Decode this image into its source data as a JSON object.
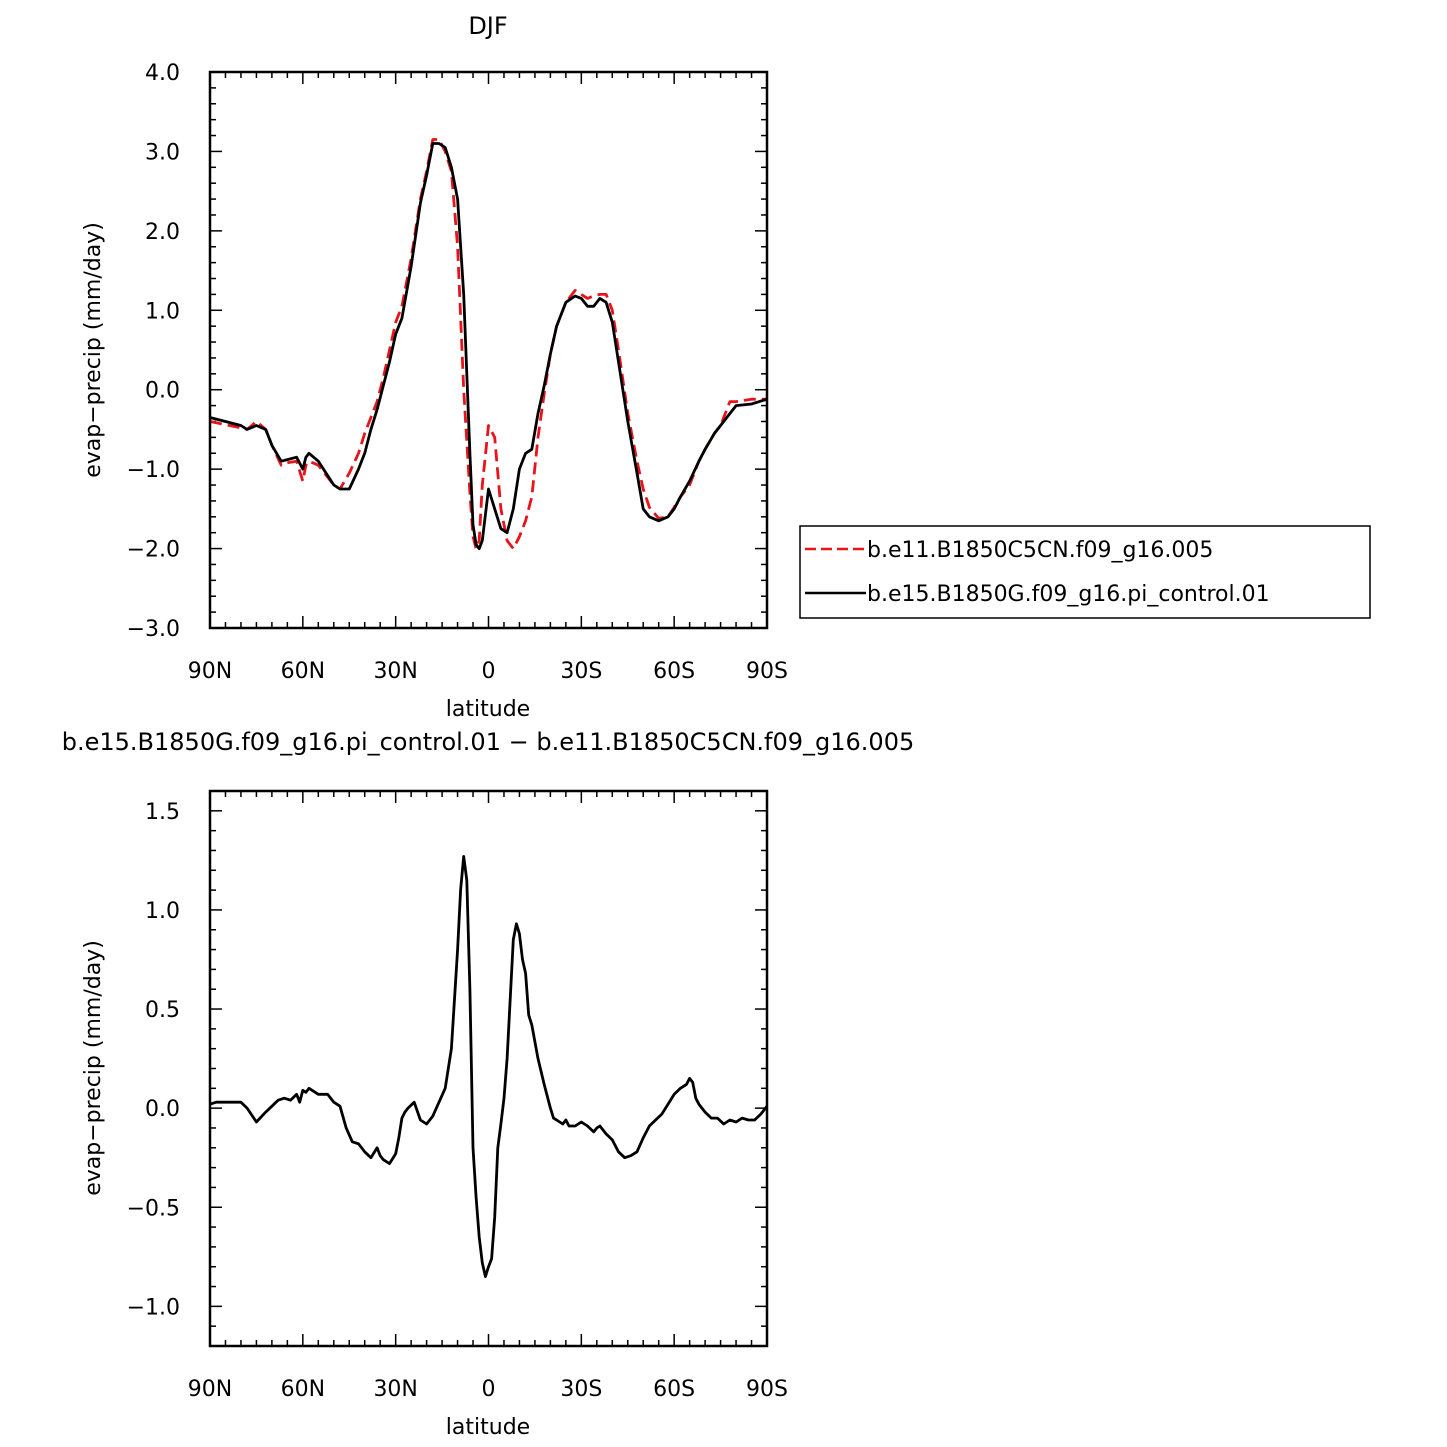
{
  "chart_data": [
    {
      "type": "line",
      "title": "DJF",
      "xlabel": "latitude",
      "ylabel": "evap−precip (mm/day)",
      "x_tick_labels": [
        "90N",
        "60N",
        "30N",
        "0",
        "30S",
        "60S",
        "90S"
      ],
      "x_tick_values": [
        90,
        60,
        30,
        0,
        -30,
        -60,
        -90
      ],
      "xlim": [
        90,
        -90
      ],
      "y_tick_labels": [
        "4.0",
        "3.0",
        "2.0",
        "1.0",
        "0.0",
        "−1.0",
        "−2.0",
        "−3.0"
      ],
      "y_tick_values": [
        4,
        3,
        2,
        1,
        0,
        -1,
        -2,
        -3
      ],
      "ylim": [
        -3,
        4
      ],
      "grid": false,
      "legend_position": "right",
      "series": [
        {
          "name": "b.e11.B1850C5CN.f09_g16.005",
          "color": "#e8141c",
          "style": "dashed",
          "x": [
            90,
            85,
            80,
            78,
            75,
            72,
            70,
            67,
            65,
            62,
            60,
            59,
            58,
            55,
            50,
            48,
            45,
            42,
            40,
            38,
            36,
            34,
            32,
            30,
            28,
            25,
            22,
            20,
            18,
            16,
            14,
            12,
            10,
            8,
            6,
            5,
            4,
            3,
            2,
            0,
            -2,
            -4,
            -6,
            -8,
            -10,
            -12,
            -14,
            -16,
            -18,
            -20,
            -22,
            -25,
            -28,
            -30,
            -32,
            -34,
            -36,
            -38,
            -40,
            -42,
            -45,
            -48,
            -50,
            -52,
            -55,
            -58,
            -60,
            -62,
            -65,
            -68,
            -70,
            -73,
            -75,
            -78,
            -80,
            -85,
            -90
          ],
          "y": [
            -0.4,
            -0.44,
            -0.48,
            -0.5,
            -0.4,
            -0.5,
            -0.7,
            -0.95,
            -0.92,
            -0.9,
            -1.15,
            -0.95,
            -0.9,
            -0.95,
            -1.2,
            -1.25,
            -1.05,
            -0.8,
            -0.55,
            -0.35,
            -0.15,
            0.15,
            0.5,
            0.85,
            1.05,
            1.65,
            2.4,
            2.75,
            3.15,
            3.15,
            3.0,
            2.75,
            1.8,
            0.0,
            -1.3,
            -1.85,
            -2.0,
            -1.9,
            -1.2,
            -0.45,
            -0.6,
            -1.5,
            -1.9,
            -2.0,
            -1.85,
            -1.65,
            -1.35,
            -0.6,
            -0.05,
            0.45,
            0.8,
            1.1,
            1.25,
            1.2,
            1.15,
            1.18,
            1.2,
            1.2,
            1.0,
            0.5,
            -0.3,
            -0.9,
            -1.25,
            -1.48,
            -1.62,
            -1.6,
            -1.48,
            -1.35,
            -1.2,
            -0.9,
            -0.75,
            -0.55,
            -0.45,
            -0.15,
            -0.15,
            -0.12,
            -0.12
          ]
        },
        {
          "name": "b.e15.B1850G.f09_g16.pi_control.01",
          "color": "#000000",
          "style": "solid",
          "x": [
            90,
            85,
            80,
            78,
            75,
            72,
            70,
            67,
            65,
            62,
            60,
            59,
            58,
            55,
            50,
            48,
            45,
            42,
            40,
            38,
            36,
            34,
            32,
            30,
            28,
            25,
            22,
            20,
            18,
            16,
            14,
            12,
            10,
            8,
            6,
            5,
            4,
            3,
            2,
            0,
            -2,
            -4,
            -6,
            -8,
            -10,
            -12,
            -14,
            -16,
            -18,
            -20,
            -22,
            -25,
            -28,
            -30,
            -32,
            -34,
            -36,
            -38,
            -40,
            -42,
            -45,
            -48,
            -50,
            -52,
            -55,
            -58,
            -60,
            -62,
            -65,
            -68,
            -70,
            -73,
            -75,
            -78,
            -80,
            -85,
            -90
          ],
          "y": [
            -0.35,
            -0.4,
            -0.45,
            -0.5,
            -0.45,
            -0.5,
            -0.7,
            -0.9,
            -0.88,
            -0.85,
            -1.0,
            -0.85,
            -0.8,
            -0.9,
            -1.2,
            -1.25,
            -1.25,
            -1.0,
            -0.8,
            -0.5,
            -0.25,
            0.05,
            0.35,
            0.7,
            0.9,
            1.55,
            2.35,
            2.7,
            3.1,
            3.1,
            3.05,
            2.8,
            2.4,
            1.2,
            -0.8,
            -1.7,
            -1.95,
            -2.0,
            -1.9,
            -1.25,
            -1.5,
            -1.75,
            -1.8,
            -1.5,
            -1.0,
            -0.8,
            -0.75,
            -0.3,
            0.05,
            0.45,
            0.8,
            1.1,
            1.18,
            1.15,
            1.05,
            1.05,
            1.15,
            1.1,
            0.85,
            0.35,
            -0.4,
            -1.05,
            -1.5,
            -1.6,
            -1.65,
            -1.6,
            -1.5,
            -1.35,
            -1.15,
            -0.9,
            -0.75,
            -0.55,
            -0.45,
            -0.3,
            -0.2,
            -0.18,
            -0.12
          ]
        }
      ]
    },
    {
      "type": "line",
      "title": "b.e15.B1850G.f09_g16.pi_control.01 − b.e11.B1850C5CN.f09_g16.005",
      "xlabel": "latitude",
      "ylabel": "evap−precip (mm/day)",
      "x_tick_labels": [
        "90N",
        "60N",
        "30N",
        "0",
        "30S",
        "60S",
        "90S"
      ],
      "x_tick_values": [
        90,
        60,
        30,
        0,
        -30,
        -60,
        -90
      ],
      "xlim": [
        90,
        -90
      ],
      "y_tick_labels": [
        "1.5",
        "1.0",
        "0.5",
        "0.0",
        "−0.5",
        "−1.0"
      ],
      "y_tick_values": [
        1.5,
        1.0,
        0.5,
        0.0,
        -0.5,
        -1.0
      ],
      "ylim": [
        -1.2,
        1.6
      ],
      "grid": false,
      "series": [
        {
          "color": "#000000",
          "style": "solid",
          "x": [
            90,
            88,
            85,
            80,
            78,
            75,
            72,
            70,
            68,
            66,
            64,
            62,
            61,
            60,
            59,
            58,
            55,
            52,
            50,
            48,
            46,
            44,
            42,
            40,
            38,
            36,
            35,
            34,
            32,
            30,
            29,
            28,
            27,
            26,
            24,
            22,
            20,
            18,
            16,
            14,
            12,
            10,
            9,
            8,
            7,
            6,
            5,
            4,
            3,
            2,
            1,
            0,
            -1,
            -2,
            -3,
            -4,
            -5,
            -6,
            -8,
            -9,
            -10,
            -11,
            -12,
            -13,
            -14,
            -16,
            -18,
            -20,
            -21,
            -22,
            -24,
            -25,
            -26,
            -28,
            -30,
            -32,
            -34,
            -35,
            -36,
            -38,
            -40,
            -42,
            -44,
            -46,
            -48,
            -50,
            -52,
            -54,
            -56,
            -58,
            -60,
            -62,
            -64,
            -65,
            -66,
            -67,
            -68,
            -70,
            -72,
            -74,
            -76,
            -78,
            -80,
            -82,
            -84,
            -86,
            -88,
            -90
          ],
          "y": [
            0.02,
            0.03,
            0.03,
            0.03,
            0.0,
            -0.07,
            -0.02,
            0.01,
            0.04,
            0.05,
            0.04,
            0.07,
            0.03,
            0.09,
            0.08,
            0.1,
            0.07,
            0.07,
            0.03,
            0.01,
            -0.1,
            -0.17,
            -0.18,
            -0.22,
            -0.25,
            -0.2,
            -0.24,
            -0.26,
            -0.28,
            -0.23,
            -0.15,
            -0.05,
            -0.02,
            0.0,
            0.03,
            -0.06,
            -0.08,
            -0.04,
            0.03,
            0.1,
            0.3,
            0.8,
            1.1,
            1.27,
            1.15,
            0.6,
            -0.2,
            -0.45,
            -0.65,
            -0.78,
            -0.85,
            -0.8,
            -0.76,
            -0.55,
            -0.2,
            -0.08,
            0.05,
            0.25,
            0.85,
            0.93,
            0.88,
            0.75,
            0.68,
            0.47,
            0.42,
            0.25,
            0.12,
            0.0,
            -0.05,
            -0.06,
            -0.08,
            -0.06,
            -0.09,
            -0.09,
            -0.07,
            -0.09,
            -0.12,
            -0.1,
            -0.09,
            -0.13,
            -0.16,
            -0.22,
            -0.25,
            -0.24,
            -0.22,
            -0.15,
            -0.09,
            -0.06,
            -0.03,
            0.02,
            0.07,
            0.1,
            0.12,
            0.15,
            0.13,
            0.05,
            0.02,
            -0.02,
            -0.05,
            -0.05,
            -0.08,
            -0.06,
            -0.07,
            -0.05,
            -0.06,
            -0.06,
            -0.03,
            0.01
          ]
        }
      ]
    }
  ]
}
